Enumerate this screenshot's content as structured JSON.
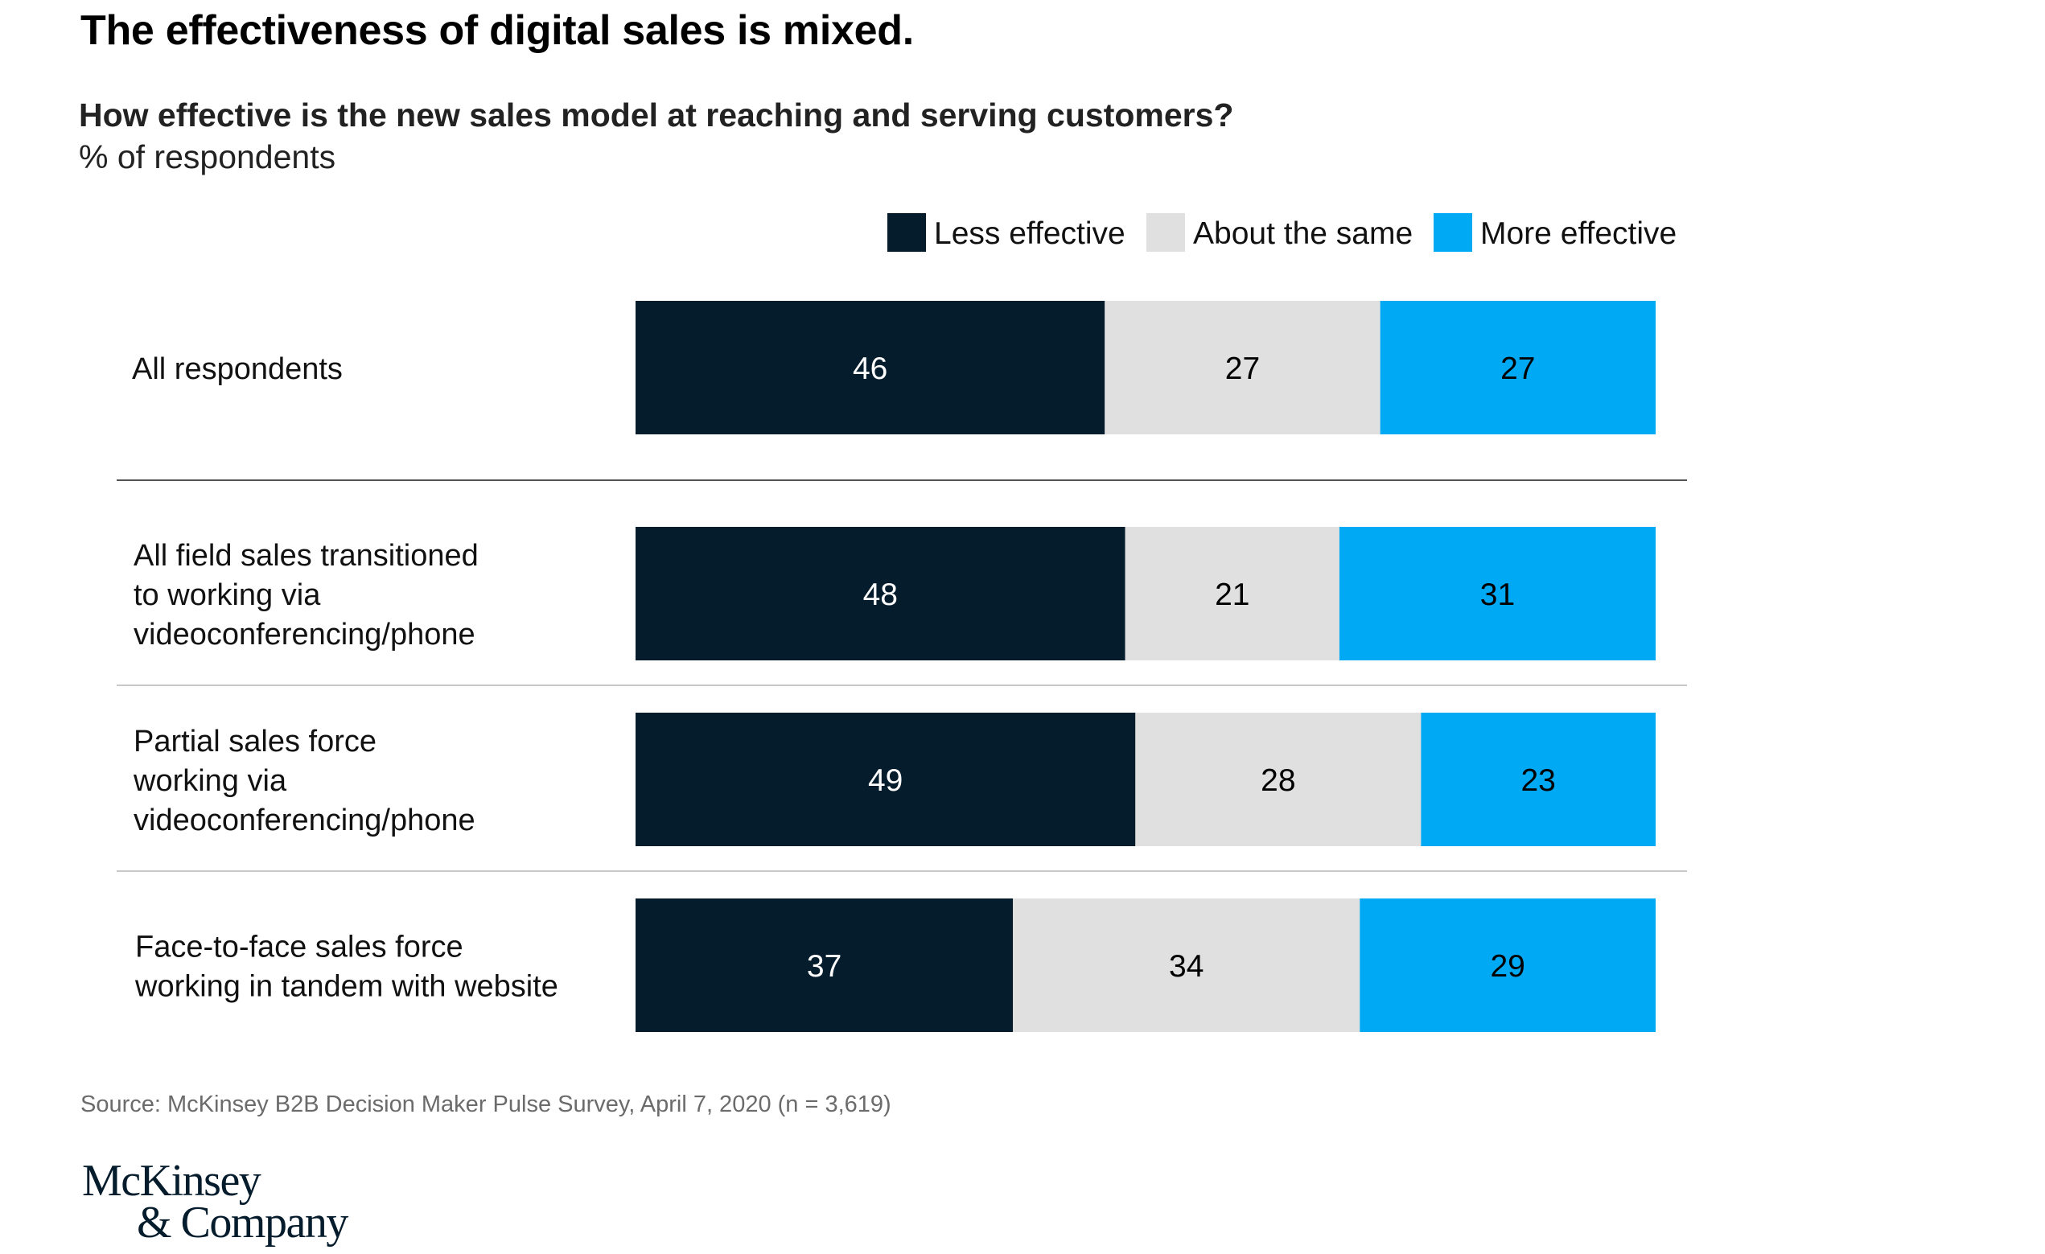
{
  "title": "The effectiveness of digital sales is mixed.",
  "subtitle": "How effective is the new sales model at reaching and serving customers?",
  "units": "% of respondents",
  "source": "Source: McKinsey B2B Decision Maker Pulse Survey, April 7, 2020 (n = 3,619)",
  "logo": {
    "line1": "McKinsey",
    "line2": "& Company"
  },
  "colors": {
    "less": "#051c2c",
    "same": "#e0e0e0",
    "more": "#00a9f4"
  },
  "chart_data": {
    "type": "bar",
    "orientation": "horizontal",
    "stacked": true,
    "title": "How effective is the new sales model at reaching and serving customers?",
    "ylabel": "% of respondents",
    "legend_position": "top-right",
    "xlim": [
      0,
      100
    ],
    "categories": [
      [
        "All respondents"
      ],
      [
        "All field sales transitioned",
        "to working via",
        "videoconferencing/phone"
      ],
      [
        "Partial sales force",
        "working via",
        "videoconferencing/phone"
      ],
      [
        "Face-to-face sales force",
        "working in tandem with website"
      ]
    ],
    "series": [
      {
        "name": "Less effective",
        "values": [
          46,
          48,
          49,
          37
        ]
      },
      {
        "name": "About the same",
        "values": [
          27,
          21,
          28,
          34
        ]
      },
      {
        "name": "More effective",
        "values": [
          27,
          31,
          23,
          29
        ]
      }
    ]
  }
}
